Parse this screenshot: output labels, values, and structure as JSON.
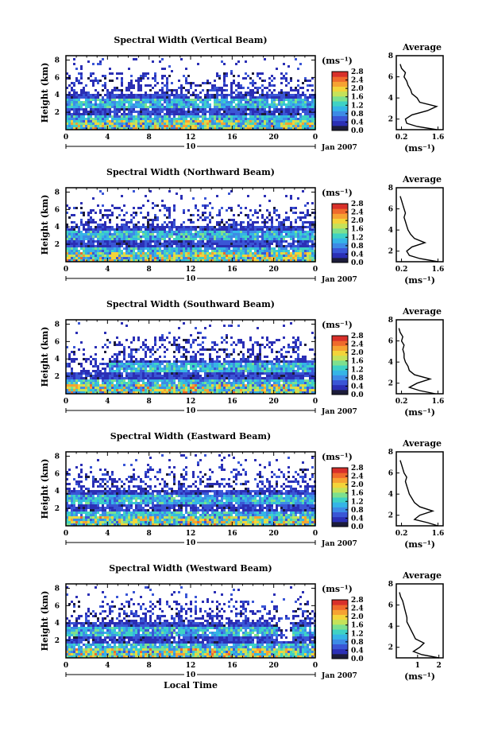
{
  "chart_data": [
    {
      "type": "heatmap",
      "title": "Spectral Width (Vertical Beam)",
      "ylabel": "Height (km)",
      "yticks": [
        "2",
        "4",
        "6",
        "8"
      ],
      "xticks": [
        "0",
        "4",
        "8",
        "12",
        "16",
        "20",
        "0"
      ],
      "date_day": "10",
      "date_label": "Jan 2007",
      "colorbar_unit": "(ms⁻¹)",
      "colorbar_ticks": [
        "0.0",
        "0.4",
        "0.8",
        "1.2",
        "1.6",
        "2.0",
        "2.4",
        "2.8"
      ],
      "avg_title": "Average",
      "avg_yticks": [
        "2",
        "4",
        "6",
        "8"
      ],
      "avg_xticks": [
        "0.2",
        "1.6"
      ],
      "avg_xlabel": "(ms⁻¹)",
      "avg_xlim": [
        0.0,
        1.8
      ],
      "avg_profile": {
        "height": [
          1.0,
          1.3,
          1.6,
          2.0,
          2.4,
          2.8,
          3.2,
          3.6,
          4.0,
          4.4,
          4.8,
          5.2,
          5.6,
          6.0,
          6.4,
          6.8,
          7.2
        ],
        "width": [
          1.55,
          0.8,
          0.4,
          0.35,
          0.6,
          1.2,
          1.55,
          0.9,
          0.8,
          0.6,
          0.55,
          0.45,
          0.4,
          0.3,
          0.35,
          0.2,
          0.15
        ]
      }
    },
    {
      "type": "heatmap",
      "title": "Spectral Width (Northward Beam)",
      "ylabel": "Height (km)",
      "yticks": [
        "2",
        "4",
        "6",
        "8"
      ],
      "xticks": [
        "0",
        "4",
        "8",
        "12",
        "16",
        "20",
        "0"
      ],
      "date_day": "10",
      "date_label": "Jan 2007",
      "colorbar_unit": "(ms⁻¹)",
      "colorbar_ticks": [
        "0.0",
        "0.4",
        "0.8",
        "1.2",
        "1.6",
        "2.0",
        "2.4",
        "2.8"
      ],
      "avg_title": "Average",
      "avg_yticks": [
        "2",
        "4",
        "6",
        "8"
      ],
      "avg_xticks": [
        "0.2",
        "1.6"
      ],
      "avg_xlabel": "(ms⁻¹)",
      "avg_xlim": [
        0.0,
        1.8
      ],
      "avg_profile": {
        "height": [
          1.0,
          1.3,
          1.6,
          2.0,
          2.4,
          2.8,
          3.2,
          3.6,
          4.0,
          4.4,
          4.8,
          5.2,
          5.6,
          6.0,
          6.4,
          6.8,
          7.2
        ],
        "width": [
          1.6,
          0.9,
          0.5,
          0.4,
          0.6,
          1.1,
          0.7,
          0.55,
          0.45,
          0.4,
          0.35,
          0.3,
          0.35,
          0.3,
          0.25,
          0.2,
          0.15
        ]
      }
    },
    {
      "type": "heatmap",
      "title": "Spectral Width (Southward Beam)",
      "ylabel": "Height (km)",
      "yticks": [
        "2",
        "4",
        "6",
        "8"
      ],
      "xticks": [
        "0",
        "4",
        "8",
        "12",
        "16",
        "20",
        "0"
      ],
      "date_day": "10",
      "date_label": "Jan 2007",
      "colorbar_unit": "(ms⁻¹)",
      "colorbar_ticks": [
        "0.0",
        "0.4",
        "0.8",
        "1.2",
        "1.6",
        "2.0",
        "2.4",
        "2.8"
      ],
      "avg_title": "Average",
      "avg_yticks": [
        "2",
        "4",
        "6",
        "8"
      ],
      "avg_xticks": [
        "0.2",
        "1.6"
      ],
      "avg_xlabel": "(ms⁻¹)",
      "avg_xlim": [
        0.0,
        1.8
      ],
      "avg_profile": {
        "height": [
          1.0,
          1.3,
          1.6,
          2.0,
          2.4,
          2.8,
          3.2,
          3.6,
          4.0,
          4.4,
          4.8,
          5.2,
          5.6,
          6.0,
          6.4,
          6.8,
          7.2
        ],
        "width": [
          1.5,
          0.9,
          0.5,
          0.8,
          1.3,
          0.7,
          0.5,
          0.45,
          0.35,
          0.3,
          0.3,
          0.25,
          0.3,
          0.2,
          0.25,
          0.15,
          0.1
        ]
      }
    },
    {
      "type": "heatmap",
      "title": "Spectral Width (Eastward Beam)",
      "ylabel": "Height (km)",
      "yticks": [
        "2",
        "4",
        "6",
        "8"
      ],
      "xticks": [
        "0",
        "4",
        "8",
        "12",
        "16",
        "20",
        "0"
      ],
      "date_day": "10",
      "date_label": "Jan 2007",
      "colorbar_unit": "(ms⁻¹)",
      "colorbar_ticks": [
        "0.0",
        "0.4",
        "0.8",
        "1.2",
        "1.6",
        "2.0",
        "2.4",
        "2.8"
      ],
      "avg_title": "Average",
      "avg_yticks": [
        "2",
        "4",
        "6",
        "8"
      ],
      "avg_xticks": [
        "0.2",
        "1.6"
      ],
      "avg_xlabel": "(ms⁻¹)",
      "avg_xlim": [
        0.0,
        1.8
      ],
      "avg_profile": {
        "height": [
          1.0,
          1.3,
          1.6,
          2.0,
          2.4,
          2.8,
          3.2,
          3.6,
          4.0,
          4.4,
          4.8,
          5.2,
          5.6,
          6.0,
          6.4,
          6.8,
          7.2
        ],
        "width": [
          1.6,
          1.2,
          0.7,
          0.9,
          1.4,
          0.9,
          0.7,
          0.6,
          0.5,
          0.45,
          0.4,
          0.35,
          0.4,
          0.3,
          0.25,
          0.2,
          0.15
        ]
      }
    },
    {
      "type": "heatmap",
      "title": "Spectral Width (Westward Beam)",
      "ylabel": "Height (km)",
      "yticks": [
        "2",
        "4",
        "6",
        "8"
      ],
      "xticks": [
        "0",
        "4",
        "8",
        "12",
        "16",
        "20",
        "0"
      ],
      "date_day": "10",
      "date_label": "Jan 2007",
      "xlabel": "Local Time",
      "colorbar_unit": "(ms⁻¹)",
      "colorbar_ticks": [
        "0.0",
        "0.4",
        "0.8",
        "1.2",
        "1.6",
        "2.0",
        "2.4",
        "2.8"
      ],
      "avg_title": "Average",
      "avg_yticks": [
        "2",
        "4",
        "6",
        "8"
      ],
      "avg_xticks": [
        "1",
        "2"
      ],
      "avg_xlabel": "(ms⁻¹)",
      "avg_xlim": [
        0.0,
        2.2
      ],
      "avg_profile": {
        "height": [
          1.0,
          1.3,
          1.6,
          2.0,
          2.4,
          2.8,
          3.2,
          3.6,
          4.0,
          4.4,
          4.8,
          5.2,
          5.6,
          6.0,
          6.4,
          6.8,
          7.2
        ],
        "width": [
          2.0,
          1.2,
          0.8,
          1.1,
          1.3,
          0.9,
          0.8,
          0.7,
          0.6,
          0.5,
          0.5,
          0.45,
          0.4,
          0.35,
          0.3,
          0.2,
          0.15
        ]
      }
    }
  ],
  "colors": {
    "colormap": [
      "#1c1c3a",
      "#2b2fb5",
      "#3a56d6",
      "#3d8be6",
      "#35b5e6",
      "#3fd2c4",
      "#7de08e",
      "#c5e25a",
      "#f3d43a",
      "#f6a232",
      "#ef6a2c",
      "#d8302a"
    ],
    "data_range": [
      0.0,
      2.8
    ]
  }
}
